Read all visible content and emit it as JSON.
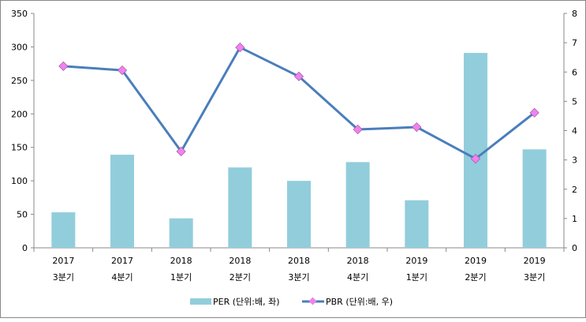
{
  "chart_data": {
    "type": "bar+line",
    "categories": [
      [
        "2017",
        "3분기"
      ],
      [
        "2017",
        "4분기"
      ],
      [
        "2018",
        "1분기"
      ],
      [
        "2018",
        "2분기"
      ],
      [
        "2018",
        "3분기"
      ],
      [
        "2018",
        "4분기"
      ],
      [
        "2019",
        "1분기"
      ],
      [
        "2019",
        "2분기"
      ],
      [
        "2019",
        "3분기"
      ]
    ],
    "series": [
      {
        "name": "PER (단위:배, 좌)",
        "type": "bar",
        "axis": "left",
        "color": "#92cddc",
        "values": [
          53,
          139,
          44,
          120,
          100,
          128,
          71,
          291,
          147
        ]
      },
      {
        "name": "PBR (단위:배, 우)",
        "type": "line",
        "axis": "right",
        "color": "#4a7ebb",
        "marker_color": "#ee82ee",
        "values": [
          6.2,
          6.06,
          3.29,
          6.84,
          5.85,
          4.04,
          4.12,
          3.04,
          4.61
        ]
      }
    ],
    "yleft": {
      "lim": [
        0,
        350
      ],
      "ticks": [
        "0",
        "50",
        "100",
        "150",
        "200",
        "250",
        "300",
        "350"
      ]
    },
    "yright": {
      "lim": [
        0,
        8
      ],
      "ticks": [
        "0",
        "1",
        "2",
        "3",
        "4",
        "5",
        "6",
        "7",
        "8"
      ]
    },
    "legend": "bottom",
    "grid": false
  }
}
